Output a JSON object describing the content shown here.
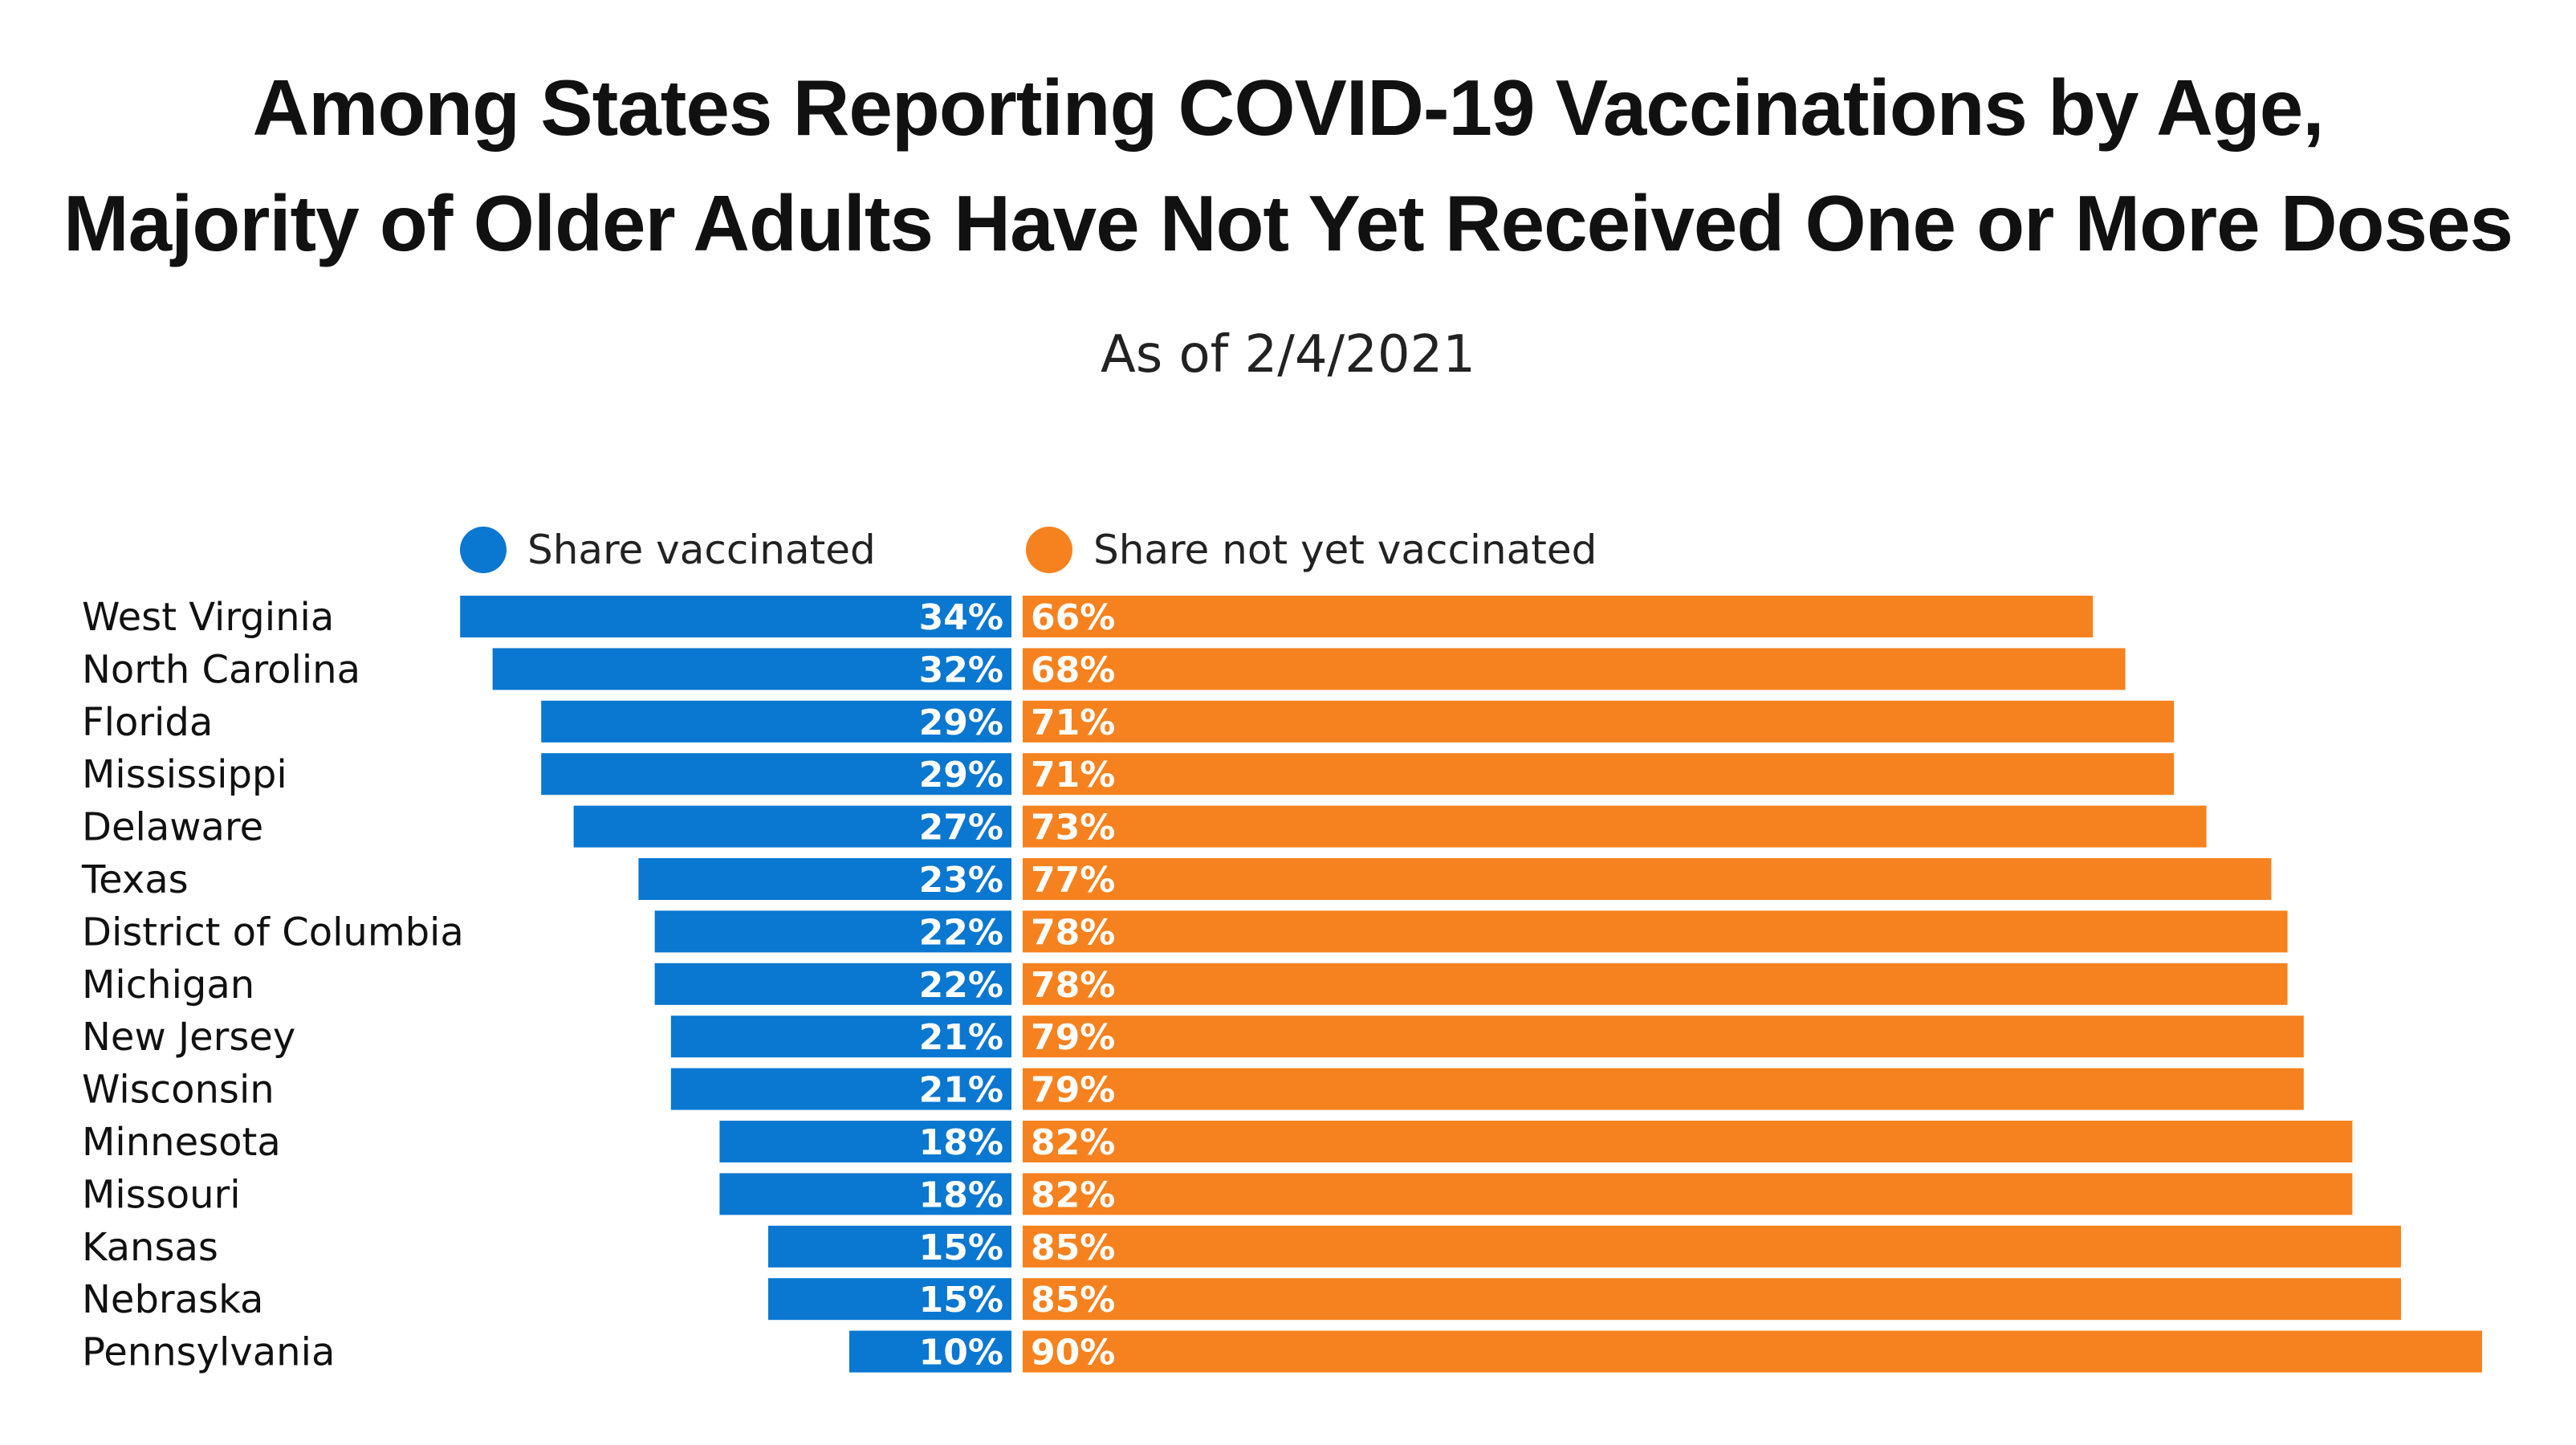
{
  "chart_data": {
    "type": "bar",
    "orientation": "horizontal-diverging",
    "title": "Among States Reporting COVID-19 Vaccinations by Age,",
    "title_line2": "Majority of Older Adults Have Not Yet Received One or More Doses",
    "subtitle": "As of 2/4/2021",
    "categories": [
      "West Virginia",
      "North Carolina",
      "Florida",
      "Mississippi",
      "Delaware",
      "Texas",
      "District of Columbia",
      "Michigan",
      "New Jersey",
      "Wisconsin",
      "Minnesota",
      "Missouri",
      "Kansas",
      "Nebraska",
      "Pennsylvania"
    ],
    "series": [
      {
        "name": "Share vaccinated",
        "color": "#0a77d0",
        "values": [
          34,
          32,
          29,
          29,
          27,
          23,
          22,
          22,
          21,
          21,
          18,
          18,
          15,
          15,
          10
        ]
      },
      {
        "name": "Share not yet vaccinated",
        "color": "#f5821f",
        "values": [
          66,
          68,
          71,
          71,
          73,
          77,
          78,
          78,
          79,
          79,
          82,
          82,
          85,
          85,
          90
        ]
      }
    ],
    "value_suffix": "%",
    "legend_position": "top",
    "grid": false
  }
}
